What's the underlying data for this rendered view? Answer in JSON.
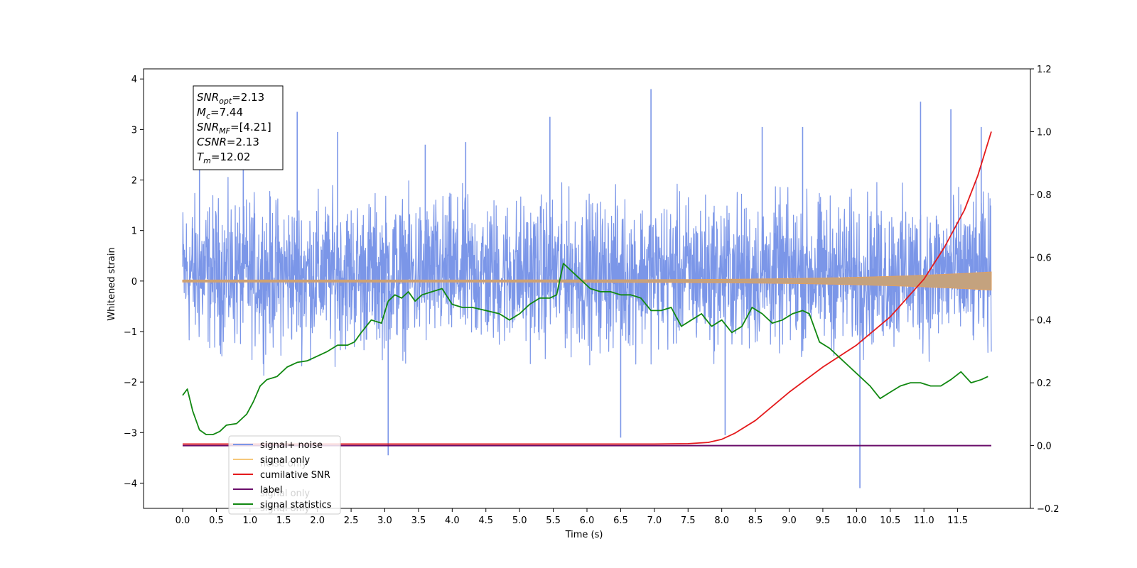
{
  "chart_data": {
    "type": "line",
    "title": "",
    "xlabel": "Time (s)",
    "ylabel": "Whitened strain",
    "xlim": [
      -0.58,
      12.58
    ],
    "ylim": [
      -4.5,
      4.2
    ],
    "ylim_right": [
      -0.2,
      1.2
    ],
    "x_ticks": [
      0.0,
      0.5,
      1.0,
      1.5,
      2.0,
      2.5,
      3.0,
      3.5,
      4.0,
      4.5,
      5.0,
      5.5,
      6.0,
      6.5,
      7.0,
      7.5,
      8.0,
      8.5,
      9.0,
      9.5,
      10.0,
      10.5,
      11.0,
      11.5
    ],
    "x_tick_labels": [
      "0.0",
      "0.5",
      "1.0",
      "1.5",
      "2.0",
      "2.5",
      "3.0",
      "3.5",
      "4.0",
      "4.5",
      "5.0",
      "5.5",
      "6.0",
      "6.5",
      "7.0",
      "7.5",
      "8.0",
      "8.5",
      "9.0",
      "9.5",
      "10.0",
      "10.5",
      "11.0",
      "11.5"
    ],
    "y_ticks": [
      -4,
      -3,
      -2,
      -1,
      0,
      1,
      2,
      3,
      4
    ],
    "y_tick_labels": [
      "−4",
      "−3",
      "−2",
      "−1",
      "0",
      "1",
      "2",
      "3",
      "4"
    ],
    "y_right_ticks": [
      -0.2,
      0.0,
      0.2,
      0.4,
      0.6,
      0.8,
      1.0,
      1.2
    ],
    "y_right_tick_labels": [
      "−0.2",
      "0.0",
      "0.2",
      "0.4",
      "0.6",
      "0.8",
      "1.0",
      "1.2"
    ],
    "grid": false,
    "legend_position": "lower-left",
    "series": [
      {
        "name": "signal+ noise",
        "axis": "left",
        "color": "#7b96e8",
        "style": "noise",
        "x_range": [
          0.0,
          12.0
        ],
        "band_typical": [
          -1.7,
          2.0
        ],
        "spikes": [
          {
            "x": 0.25,
            "y": 2.2
          },
          {
            "x": 0.9,
            "y": 2.9
          },
          {
            "x": 1.7,
            "y": 3.35
          },
          {
            "x": 2.3,
            "y": 2.95
          },
          {
            "x": 3.05,
            "y": -3.45
          },
          {
            "x": 3.6,
            "y": 2.7
          },
          {
            "x": 4.2,
            "y": 2.75
          },
          {
            "x": 5.45,
            "y": 3.25
          },
          {
            "x": 6.5,
            "y": -3.1
          },
          {
            "x": 6.95,
            "y": 3.8
          },
          {
            "x": 8.05,
            "y": -3.05
          },
          {
            "x": 8.6,
            "y": 3.05
          },
          {
            "x": 9.2,
            "y": 3.05
          },
          {
            "x": 10.05,
            "y": -4.1
          },
          {
            "x": 11.4,
            "y": 3.4
          },
          {
            "x": 11.85,
            "y": 3.05
          },
          {
            "x": 10.95,
            "y": 3.55
          }
        ]
      },
      {
        "name": "signal only",
        "axis": "left",
        "color": "#e0a060",
        "style": "chirp",
        "x_range": [
          0.0,
          12.0
        ],
        "amplitude_start": 0.02,
        "amplitude_end": 0.18
      },
      {
        "name": "cumilative SNR",
        "axis": "right",
        "color": "#e41a1c",
        "x": [
          0.0,
          1.0,
          2.0,
          3.0,
          4.0,
          5.0,
          6.0,
          7.0,
          7.5,
          7.8,
          8.0,
          8.2,
          8.5,
          9.0,
          9.5,
          10.0,
          10.5,
          11.0,
          11.3,
          11.6,
          11.8,
          12.0
        ],
        "values": [
          0.005,
          0.005,
          0.005,
          0.005,
          0.005,
          0.005,
          0.005,
          0.005,
          0.006,
          0.01,
          0.02,
          0.04,
          0.08,
          0.17,
          0.25,
          0.32,
          0.41,
          0.53,
          0.63,
          0.75,
          0.86,
          1.0
        ]
      },
      {
        "name": "label",
        "axis": "right",
        "color": "#6a0d6a",
        "x": [
          0.0,
          12.0
        ],
        "values": [
          0.0,
          0.0
        ]
      },
      {
        "name": "signal statistics",
        "axis": "right",
        "color": "#118811",
        "x": [
          0.0,
          0.07,
          0.15,
          0.25,
          0.35,
          0.45,
          0.55,
          0.65,
          0.8,
          0.95,
          1.05,
          1.15,
          1.25,
          1.4,
          1.55,
          1.7,
          1.85,
          2.0,
          2.15,
          2.3,
          2.45,
          2.55,
          2.65,
          2.8,
          2.95,
          3.05,
          3.15,
          3.25,
          3.35,
          3.45,
          3.55,
          3.7,
          3.85,
          4.0,
          4.15,
          4.3,
          4.5,
          4.7,
          4.85,
          5.0,
          5.15,
          5.3,
          5.45,
          5.55,
          5.65,
          5.75,
          5.9,
          6.05,
          6.2,
          6.35,
          6.5,
          6.65,
          6.8,
          6.95,
          7.1,
          7.25,
          7.4,
          7.55,
          7.7,
          7.85,
          8.0,
          8.15,
          8.3,
          8.45,
          8.6,
          8.75,
          8.9,
          9.05,
          9.2,
          9.3,
          9.45,
          9.6,
          9.75,
          9.9,
          10.05,
          10.2,
          10.35,
          10.5,
          10.65,
          10.8,
          10.95,
          11.1,
          11.25,
          11.4,
          11.55,
          11.7,
          11.85,
          11.95
        ],
        "values": [
          0.16,
          0.18,
          0.11,
          0.05,
          0.035,
          0.035,
          0.045,
          0.065,
          0.07,
          0.1,
          0.14,
          0.19,
          0.21,
          0.22,
          0.25,
          0.265,
          0.27,
          0.285,
          0.3,
          0.32,
          0.32,
          0.33,
          0.36,
          0.4,
          0.39,
          0.46,
          0.48,
          0.47,
          0.49,
          0.46,
          0.48,
          0.49,
          0.5,
          0.45,
          0.44,
          0.44,
          0.43,
          0.42,
          0.4,
          0.42,
          0.45,
          0.47,
          0.47,
          0.48,
          0.58,
          0.56,
          0.53,
          0.5,
          0.49,
          0.49,
          0.48,
          0.48,
          0.47,
          0.43,
          0.43,
          0.44,
          0.38,
          0.4,
          0.42,
          0.38,
          0.4,
          0.36,
          0.38,
          0.44,
          0.42,
          0.39,
          0.4,
          0.42,
          0.43,
          0.42,
          0.33,
          0.31,
          0.28,
          0.25,
          0.22,
          0.19,
          0.15,
          0.17,
          0.19,
          0.2,
          0.2,
          0.19,
          0.19,
          0.21,
          0.235,
          0.2,
          0.21,
          0.22
        ]
      }
    ],
    "annotation": {
      "lines": [
        {
          "sym": "SNR",
          "sub": "opt",
          "val": "=2.13"
        },
        {
          "sym": "M",
          "sub": "c",
          "val": "=7.44"
        },
        {
          "sym": "SNR",
          "sub": "MF",
          "val": "=[4.21]"
        },
        {
          "sym": "CSNR",
          "sub": "",
          "val": "=2.13"
        },
        {
          "sym": "T",
          "sub": "m",
          "val": "=12.02"
        }
      ]
    },
    "legend_occluded_text": [
      {
        "text": "noise only",
        "row": 1,
        "offset": 44
      },
      {
        "text": "signal only",
        "row": 3,
        "offset": 44
      },
      {
        "text": "signal only",
        "row": 4,
        "offset": 44
      }
    ]
  }
}
